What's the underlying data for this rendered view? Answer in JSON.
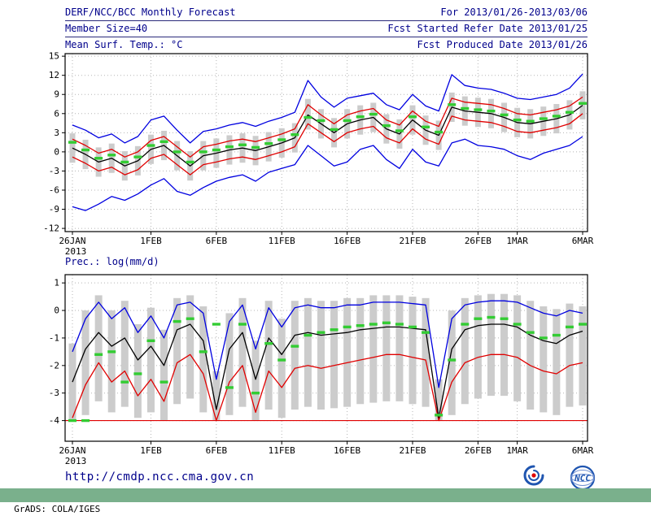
{
  "header": {
    "title": "DERF/NCC/BCC Monthly Forecast",
    "member_size": "Member Size=40",
    "for_range": "For 2013/01/26-2013/03/06",
    "fcst_started": "Fcst Started Refer Date 2013/01/25",
    "fcst_produced": "Fcst Produced Date 2013/01/26"
  },
  "footer": {
    "url": "http://cmdp.ncc.cma.gov.cn",
    "bcc_label": "BCC",
    "ncc_label": "NCC",
    "grads": "GrADS: COLA/IGES"
  },
  "colors": {
    "header_text": "#00008b",
    "axis_text": "#000000",
    "line_blue": "#0000e0",
    "line_red": "#e00000",
    "line_black": "#000000",
    "obs_green": "#33cc33",
    "bar_gray": "#cccccc",
    "grads_bar": "#7ab08c"
  },
  "chart_data": [
    {
      "type": "line",
      "panel": "mean-surface-temperature",
      "title": "Mean Surf. Temp.: °C",
      "ylim": [
        -12.5,
        15.4
      ],
      "yticks": [
        15,
        12,
        9,
        6,
        3,
        0,
        -3,
        -6,
        -9,
        -12
      ],
      "grid": true,
      "year_label": "2013",
      "x_ticks": [
        {
          "index": 0,
          "label": "26JAN"
        },
        {
          "index": 6,
          "label": "1FEB"
        },
        {
          "index": 11,
          "label": "6FEB"
        },
        {
          "index": 16,
          "label": "11FEB"
        },
        {
          "index": 21,
          "label": "16FEB"
        },
        {
          "index": 26,
          "label": "21FEB"
        },
        {
          "index": 31,
          "label": "26FEB"
        },
        {
          "index": 34,
          "label": "1MAR"
        },
        {
          "index": 39,
          "label": "6MAR"
        }
      ],
      "series": [
        {
          "name": "ensemble-max",
          "color": "#0000e0",
          "values": [
            4.2,
            3.4,
            2.2,
            2.8,
            1.4,
            2.4,
            5.0,
            5.6,
            3.4,
            1.4,
            3.2,
            3.6,
            4.2,
            4.6,
            4.0,
            4.8,
            5.4,
            6.2,
            11.2,
            8.6,
            7.0,
            8.4,
            8.8,
            9.2,
            7.4,
            6.6,
            9.0,
            7.2,
            6.4,
            12.1,
            10.4,
            10.0,
            9.8,
            9.2,
            8.4,
            8.2,
            8.6,
            9.0,
            10.0,
            12.2
          ]
        },
        {
          "name": "ensemble-min",
          "color": "#0000e0",
          "values": [
            -8.6,
            -9.2,
            -8.2,
            -7.0,
            -7.6,
            -6.6,
            -5.2,
            -4.2,
            -6.2,
            -6.8,
            -5.6,
            -4.6,
            -4.0,
            -3.6,
            -4.6,
            -3.2,
            -2.6,
            -2.0,
            1.0,
            -0.6,
            -2.2,
            -1.6,
            0.4,
            1.0,
            -1.2,
            -2.6,
            0.4,
            -1.6,
            -2.2,
            1.4,
            2.0,
            1.0,
            0.8,
            0.4,
            -0.6,
            -1.2,
            -0.2,
            0.4,
            1.0,
            2.4
          ]
        },
        {
          "name": "upper-spread",
          "color": "#e00000",
          "values": [
            2.0,
            1.0,
            -0.2,
            0.4,
            -0.8,
            0.0,
            1.8,
            2.4,
            0.8,
            -0.8,
            0.8,
            1.2,
            1.7,
            2.0,
            1.6,
            2.2,
            2.8,
            3.6,
            7.4,
            5.8,
            4.4,
            5.8,
            6.4,
            6.8,
            5.0,
            4.2,
            6.4,
            4.8,
            4.0,
            8.4,
            7.8,
            7.6,
            7.4,
            6.8,
            6.0,
            5.8,
            6.2,
            6.6,
            7.2,
            8.6
          ]
        },
        {
          "name": "lower-spread",
          "color": "#e00000",
          "values": [
            -0.8,
            -1.8,
            -3.0,
            -2.4,
            -3.6,
            -2.8,
            -1.0,
            -0.4,
            -2.0,
            -3.6,
            -2.0,
            -1.6,
            -1.1,
            -0.8,
            -1.2,
            -0.6,
            0.0,
            0.8,
            4.4,
            3.0,
            1.6,
            3.0,
            3.6,
            4.0,
            2.2,
            1.4,
            3.6,
            2.0,
            1.2,
            5.6,
            5.0,
            4.8,
            4.6,
            4.0,
            3.2,
            3.0,
            3.4,
            3.8,
            4.4,
            6.0
          ]
        },
        {
          "name": "ensemble-mean",
          "color": "#000000",
          "values": [
            0.6,
            -0.4,
            -1.6,
            -1.0,
            -2.2,
            -1.4,
            0.4,
            1.0,
            -0.6,
            -2.2,
            -0.6,
            -0.2,
            0.3,
            0.6,
            0.2,
            0.8,
            1.4,
            2.2,
            5.8,
            4.4,
            3.0,
            4.4,
            5.0,
            5.4,
            3.6,
            2.8,
            5.0,
            3.4,
            2.6,
            7.0,
            6.4,
            6.2,
            6.0,
            5.4,
            4.6,
            4.4,
            4.8,
            5.2,
            5.8,
            7.3
          ]
        }
      ],
      "obs_dashes": {
        "name": "control-member",
        "color": "#33cc33",
        "values": [
          1.5,
          0.3,
          -1.0,
          -0.5,
          -1.6,
          -0.8,
          1.0,
          1.6,
          0.0,
          -1.6,
          0.0,
          0.3,
          0.8,
          1.1,
          0.7,
          1.3,
          1.9,
          2.7,
          5.4,
          4.9,
          3.5,
          4.9,
          5.5,
          5.9,
          4.1,
          3.3,
          5.5,
          3.9,
          3.1,
          7.4,
          6.8,
          6.6,
          6.4,
          5.8,
          5.0,
          4.8,
          5.2,
          5.6,
          6.2,
          7.6
        ]
      },
      "bars": {
        "name": "member-spread",
        "color": "#cccccc",
        "high": [
          2.9,
          1.9,
          0.7,
          1.3,
          0.1,
          0.9,
          2.7,
          3.3,
          1.7,
          0.1,
          1.7,
          2.1,
          2.6,
          2.9,
          2.5,
          3.1,
          3.7,
          4.5,
          8.3,
          6.7,
          5.3,
          6.7,
          7.3,
          7.7,
          5.9,
          5.1,
          7.3,
          5.7,
          4.9,
          9.3,
          8.7,
          8.5,
          8.3,
          7.7,
          6.9,
          6.7,
          7.1,
          7.5,
          8.1,
          9.5
        ],
        "low": [
          -1.7,
          -2.7,
          -3.9,
          -3.3,
          -4.5,
          -3.7,
          -1.9,
          -1.3,
          -2.9,
          -4.5,
          -2.9,
          -2.5,
          -2.0,
          -1.7,
          -2.1,
          -1.5,
          -0.9,
          -0.1,
          3.5,
          2.1,
          0.7,
          2.1,
          2.7,
          3.1,
          1.3,
          0.5,
          2.7,
          1.1,
          0.3,
          4.7,
          4.1,
          3.9,
          3.7,
          3.1,
          2.3,
          2.1,
          2.5,
          2.9,
          3.5,
          5.1
        ]
      }
    },
    {
      "type": "line",
      "panel": "precipitation",
      "title": "Prec.: log(mm/d)",
      "ylim": [
        -4.75,
        1.3
      ],
      "yticks": [
        1,
        0,
        -1,
        -2,
        -3,
        -4
      ],
      "grid": true,
      "year_label": "2013",
      "x_ticks": [
        {
          "index": 0,
          "label": "26JAN"
        },
        {
          "index": 6,
          "label": "1FEB"
        },
        {
          "index": 11,
          "label": "6FEB"
        },
        {
          "index": 16,
          "label": "11FEB"
        },
        {
          "index": 21,
          "label": "16FEB"
        },
        {
          "index": 26,
          "label": "21FEB"
        },
        {
          "index": 31,
          "label": "26FEB"
        },
        {
          "index": 34,
          "label": "1MAR"
        },
        {
          "index": 39,
          "label": "6MAR"
        }
      ],
      "floor": {
        "name": "min-floor",
        "color": "#e00000",
        "value": -4
      },
      "series": [
        {
          "name": "ensemble-max",
          "color": "#0000e0",
          "values": [
            -1.5,
            -0.3,
            0.3,
            -0.3,
            0.1,
            -0.8,
            -0.2,
            -1.0,
            0.2,
            0.3,
            -0.1,
            -2.5,
            -0.4,
            0.2,
            -1.4,
            0.1,
            -0.6,
            0.1,
            0.2,
            0.1,
            0.1,
            0.2,
            0.2,
            0.3,
            0.3,
            0.3,
            0.25,
            0.2,
            -2.8,
            -0.3,
            0.2,
            0.3,
            0.35,
            0.35,
            0.3,
            0.1,
            -0.1,
            -0.2,
            0.0,
            -0.1
          ]
        },
        {
          "name": "lower-spread",
          "color": "#e00000",
          "values": [
            -3.9,
            -2.7,
            -1.9,
            -2.6,
            -2.2,
            -3.1,
            -2.5,
            -3.3,
            -1.9,
            -1.6,
            -2.3,
            -4.0,
            -2.6,
            -2.0,
            -3.7,
            -2.2,
            -2.8,
            -2.1,
            -2.0,
            -2.1,
            -2.0,
            -1.9,
            -1.8,
            -1.7,
            -1.6,
            -1.6,
            -1.7,
            -1.8,
            -4.0,
            -2.6,
            -1.9,
            -1.7,
            -1.6,
            -1.6,
            -1.7,
            -2.0,
            -2.2,
            -2.3,
            -2.0,
            -1.9
          ]
        },
        {
          "name": "ensemble-mean",
          "color": "#000000",
          "values": [
            -2.6,
            -1.4,
            -0.8,
            -1.3,
            -1.0,
            -1.8,
            -1.3,
            -2.0,
            -0.7,
            -0.5,
            -1.1,
            -3.6,
            -1.4,
            -0.8,
            -2.5,
            -1.0,
            -1.6,
            -0.9,
            -0.8,
            -0.9,
            -0.85,
            -0.8,
            -0.7,
            -0.65,
            -0.6,
            -0.6,
            -0.65,
            -0.7,
            -3.9,
            -1.4,
            -0.7,
            -0.55,
            -0.5,
            -0.5,
            -0.6,
            -0.9,
            -1.1,
            -1.2,
            -0.9,
            -0.75
          ]
        }
      ],
      "obs_dashes": {
        "name": "control-member",
        "color": "#33cc33",
        "values": [
          -4.0,
          -4.0,
          -1.6,
          -1.5,
          -2.6,
          -2.3,
          -1.1,
          -2.6,
          -0.4,
          -0.3,
          -1.5,
          -0.5,
          -2.8,
          -0.5,
          -3.0,
          -1.2,
          -1.8,
          -1.3,
          -0.9,
          -0.8,
          -0.7,
          -0.6,
          -0.55,
          -0.5,
          -0.45,
          -0.5,
          -0.6,
          -0.8,
          -3.8,
          -1.8,
          -0.5,
          -0.3,
          -0.25,
          -0.3,
          -0.5,
          -0.8,
          -1.0,
          -0.9,
          -0.6,
          -0.5
        ]
      },
      "bars": {
        "name": "member-spread",
        "color": "#cccccc",
        "high": [
          -1.2,
          0.0,
          0.55,
          0.0,
          0.35,
          -0.5,
          0.1,
          -0.7,
          0.45,
          0.55,
          0.15,
          -2.2,
          -0.1,
          0.45,
          -1.1,
          0.35,
          -0.3,
          0.35,
          0.45,
          0.35,
          0.35,
          0.45,
          0.45,
          0.55,
          0.55,
          0.55,
          0.5,
          0.45,
          -2.5,
          0.0,
          0.45,
          0.55,
          0.6,
          0.6,
          0.55,
          0.35,
          0.15,
          0.05,
          0.25,
          0.15
        ],
        "low": [
          -4.0,
          -3.8,
          -3.3,
          -3.7,
          -3.5,
          -3.9,
          -3.7,
          -4.0,
          -3.4,
          -3.2,
          -3.7,
          -4.0,
          -3.8,
          -3.5,
          -4.0,
          -3.6,
          -3.9,
          -3.6,
          -3.5,
          -3.6,
          -3.55,
          -3.5,
          -3.4,
          -3.35,
          -3.3,
          -3.3,
          -3.4,
          -3.5,
          -4.0,
          -3.8,
          -3.4,
          -3.2,
          -3.1,
          -3.1,
          -3.3,
          -3.6,
          -3.7,
          -3.8,
          -3.5,
          -3.45
        ]
      }
    }
  ]
}
